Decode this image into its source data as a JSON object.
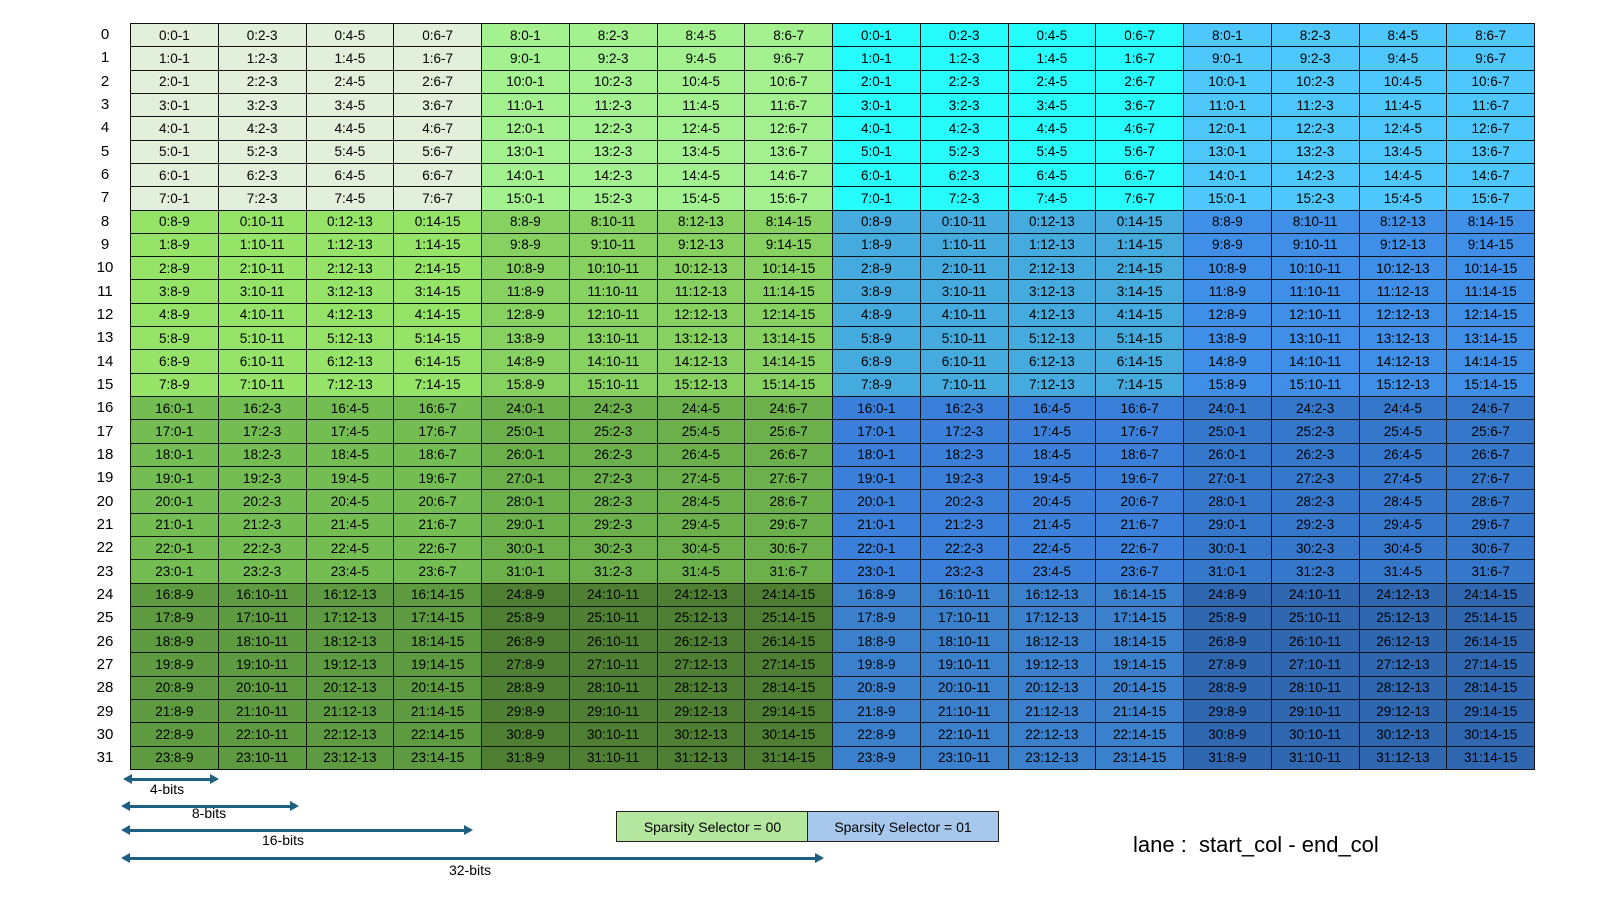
{
  "row_labels": [
    "0",
    "1",
    "2",
    "3",
    "4",
    "5",
    "6",
    "7",
    "8",
    "9",
    "10",
    "11",
    "12",
    "13",
    "14",
    "15",
    "16",
    "17",
    "18",
    "19",
    "20",
    "21",
    "22",
    "23",
    "24",
    "25",
    "26",
    "27",
    "28",
    "29",
    "30",
    "31"
  ],
  "grid": [
    [
      "0:0-1",
      "0:2-3",
      "0:4-5",
      "0:6-7",
      "8:0-1",
      "8:2-3",
      "8:4-5",
      "8:6-7",
      "0:0-1",
      "0:2-3",
      "0:4-5",
      "0:6-7",
      "8:0-1",
      "8:2-3",
      "8:4-5",
      "8:6-7"
    ],
    [
      "1:0-1",
      "1:2-3",
      "1:4-5",
      "1:6-7",
      "9:0-1",
      "9:2-3",
      "9:4-5",
      "9:6-7",
      "1:0-1",
      "1:2-3",
      "1:4-5",
      "1:6-7",
      "9:0-1",
      "9:2-3",
      "9:4-5",
      "9:6-7"
    ],
    [
      "2:0-1",
      "2:2-3",
      "2:4-5",
      "2:6-7",
      "10:0-1",
      "10:2-3",
      "10:4-5",
      "10:6-7",
      "2:0-1",
      "2:2-3",
      "2:4-5",
      "2:6-7",
      "10:0-1",
      "10:2-3",
      "10:4-5",
      "10:6-7"
    ],
    [
      "3:0-1",
      "3:2-3",
      "3:4-5",
      "3:6-7",
      "11:0-1",
      "11:2-3",
      "11:4-5",
      "11:6-7",
      "3:0-1",
      "3:2-3",
      "3:4-5",
      "3:6-7",
      "11:0-1",
      "11:2-3",
      "11:4-5",
      "11:6-7"
    ],
    [
      "4:0-1",
      "4:2-3",
      "4:4-5",
      "4:6-7",
      "12:0-1",
      "12:2-3",
      "12:4-5",
      "12:6-7",
      "4:0-1",
      "4:2-3",
      "4:4-5",
      "4:6-7",
      "12:0-1",
      "12:2-3",
      "12:4-5",
      "12:6-7"
    ],
    [
      "5:0-1",
      "5:2-3",
      "5:4-5",
      "5:6-7",
      "13:0-1",
      "13:2-3",
      "13:4-5",
      "13:6-7",
      "5:0-1",
      "5:2-3",
      "5:4-5",
      "5:6-7",
      "13:0-1",
      "13:2-3",
      "13:4-5",
      "13:6-7"
    ],
    [
      "6:0-1",
      "6:2-3",
      "6:4-5",
      "6:6-7",
      "14:0-1",
      "14:2-3",
      "14:4-5",
      "14:6-7",
      "6:0-1",
      "6:2-3",
      "6:4-5",
      "6:6-7",
      "14:0-1",
      "14:2-3",
      "14:4-5",
      "14:6-7"
    ],
    [
      "7:0-1",
      "7:2-3",
      "7:4-5",
      "7:6-7",
      "15:0-1",
      "15:2-3",
      "15:4-5",
      "15:6-7",
      "7:0-1",
      "7:2-3",
      "7:4-5",
      "7:6-7",
      "15:0-1",
      "15:2-3",
      "15:4-5",
      "15:6-7"
    ],
    [
      "0:8-9",
      "0:10-11",
      "0:12-13",
      "0:14-15",
      "8:8-9",
      "8:10-11",
      "8:12-13",
      "8:14-15",
      "0:8-9",
      "0:10-11",
      "0:12-13",
      "0:14-15",
      "8:8-9",
      "8:10-11",
      "8:12-13",
      "8:14-15"
    ],
    [
      "1:8-9",
      "1:10-11",
      "1:12-13",
      "1:14-15",
      "9:8-9",
      "9:10-11",
      "9:12-13",
      "9:14-15",
      "1:8-9",
      "1:10-11",
      "1:12-13",
      "1:14-15",
      "9:8-9",
      "9:10-11",
      "9:12-13",
      "9:14-15"
    ],
    [
      "2:8-9",
      "2:10-11",
      "2:12-13",
      "2:14-15",
      "10:8-9",
      "10:10-11",
      "10:12-13",
      "10:14-15",
      "2:8-9",
      "2:10-11",
      "2:12-13",
      "2:14-15",
      "10:8-9",
      "10:10-11",
      "10:12-13",
      "10:14-15"
    ],
    [
      "3:8-9",
      "3:10-11",
      "3:12-13",
      "3:14-15",
      "11:8-9",
      "11:10-11",
      "11:12-13",
      "11:14-15",
      "3:8-9",
      "3:10-11",
      "3:12-13",
      "3:14-15",
      "11:8-9",
      "11:10-11",
      "11:12-13",
      "11:14-15"
    ],
    [
      "4:8-9",
      "4:10-11",
      "4:12-13",
      "4:14-15",
      "12:8-9",
      "12:10-11",
      "12:12-13",
      "12:14-15",
      "4:8-9",
      "4:10-11",
      "4:12-13",
      "4:14-15",
      "12:8-9",
      "12:10-11",
      "12:12-13",
      "12:14-15"
    ],
    [
      "5:8-9",
      "5:10-11",
      "5:12-13",
      "5:14-15",
      "13:8-9",
      "13:10-11",
      "13:12-13",
      "13:14-15",
      "5:8-9",
      "5:10-11",
      "5:12-13",
      "5:14-15",
      "13:8-9",
      "13:10-11",
      "13:12-13",
      "13:14-15"
    ],
    [
      "6:8-9",
      "6:10-11",
      "6:12-13",
      "6:14-15",
      "14:8-9",
      "14:10-11",
      "14:12-13",
      "14:14-15",
      "6:8-9",
      "6:10-11",
      "6:12-13",
      "6:14-15",
      "14:8-9",
      "14:10-11",
      "14:12-13",
      "14:14-15"
    ],
    [
      "7:8-9",
      "7:10-11",
      "7:12-13",
      "7:14-15",
      "15:8-9",
      "15:10-11",
      "15:12-13",
      "15:14-15",
      "7:8-9",
      "7:10-11",
      "7:12-13",
      "7:14-15",
      "15:8-9",
      "15:10-11",
      "15:12-13",
      "15:14-15"
    ],
    [
      "16:0-1",
      "16:2-3",
      "16:4-5",
      "16:6-7",
      "24:0-1",
      "24:2-3",
      "24:4-5",
      "24:6-7",
      "16:0-1",
      "16:2-3",
      "16:4-5",
      "16:6-7",
      "24:0-1",
      "24:2-3",
      "24:4-5",
      "24:6-7"
    ],
    [
      "17:0-1",
      "17:2-3",
      "17:4-5",
      "17:6-7",
      "25:0-1",
      "25:2-3",
      "25:4-5",
      "25:6-7",
      "17:0-1",
      "17:2-3",
      "17:4-5",
      "17:6-7",
      "25:0-1",
      "25:2-3",
      "25:4-5",
      "25:6-7"
    ],
    [
      "18:0-1",
      "18:2-3",
      "18:4-5",
      "18:6-7",
      "26:0-1",
      "26:2-3",
      "26:4-5",
      "26:6-7",
      "18:0-1",
      "18:2-3",
      "18:4-5",
      "18:6-7",
      "26:0-1",
      "26:2-3",
      "26:4-5",
      "26:6-7"
    ],
    [
      "19:0-1",
      "19:2-3",
      "19:4-5",
      "19:6-7",
      "27:0-1",
      "27:2-3",
      "27:4-5",
      "27:6-7",
      "19:0-1",
      "19:2-3",
      "19:4-5",
      "19:6-7",
      "27:0-1",
      "27:2-3",
      "27:4-5",
      "27:6-7"
    ],
    [
      "20:0-1",
      "20:2-3",
      "20:4-5",
      "20:6-7",
      "28:0-1",
      "28:2-3",
      "28:4-5",
      "28:6-7",
      "20:0-1",
      "20:2-3",
      "20:4-5",
      "20:6-7",
      "28:0-1",
      "28:2-3",
      "28:4-5",
      "28:6-7"
    ],
    [
      "21:0-1",
      "21:2-3",
      "21:4-5",
      "21:6-7",
      "29:0-1",
      "29:2-3",
      "29:4-5",
      "29:6-7",
      "21:0-1",
      "21:2-3",
      "21:4-5",
      "21:6-7",
      "29:0-1",
      "29:2-3",
      "29:4-5",
      "29:6-7"
    ],
    [
      "22:0-1",
      "22:2-3",
      "22:4-5",
      "22:6-7",
      "30:0-1",
      "30:2-3",
      "30:4-5",
      "30:6-7",
      "22:0-1",
      "22:2-3",
      "22:4-5",
      "22:6-7",
      "30:0-1",
      "30:2-3",
      "30:4-5",
      "30:6-7"
    ],
    [
      "23:0-1",
      "23:2-3",
      "23:4-5",
      "23:6-7",
      "31:0-1",
      "31:2-3",
      "31:4-5",
      "31:6-7",
      "23:0-1",
      "23:2-3",
      "23:4-5",
      "23:6-7",
      "31:0-1",
      "31:2-3",
      "31:4-5",
      "31:6-7"
    ],
    [
      "16:8-9",
      "16:10-11",
      "16:12-13",
      "16:14-15",
      "24:8-9",
      "24:10-11",
      "24:12-13",
      "24:14-15",
      "16:8-9",
      "16:10-11",
      "16:12-13",
      "16:14-15",
      "24:8-9",
      "24:10-11",
      "24:12-13",
      "24:14-15"
    ],
    [
      "17:8-9",
      "17:10-11",
      "17:12-13",
      "17:14-15",
      "25:8-9",
      "25:10-11",
      "25:12-13",
      "25:14-15",
      "17:8-9",
      "17:10-11",
      "17:12-13",
      "17:14-15",
      "25:8-9",
      "25:10-11",
      "25:12-13",
      "25:14-15"
    ],
    [
      "18:8-9",
      "18:10-11",
      "18:12-13",
      "18:14-15",
      "26:8-9",
      "26:10-11",
      "26:12-13",
      "26:14-15",
      "18:8-9",
      "18:10-11",
      "18:12-13",
      "18:14-15",
      "26:8-9",
      "26:10-11",
      "26:12-13",
      "26:14-15"
    ],
    [
      "19:8-9",
      "19:10-11",
      "19:12-13",
      "19:14-15",
      "27:8-9",
      "27:10-11",
      "27:12-13",
      "27:14-15",
      "19:8-9",
      "19:10-11",
      "19:12-13",
      "19:14-15",
      "27:8-9",
      "27:10-11",
      "27:12-13",
      "27:14-15"
    ],
    [
      "20:8-9",
      "20:10-11",
      "20:12-13",
      "20:14-15",
      "28:8-9",
      "28:10-11",
      "28:12-13",
      "28:14-15",
      "20:8-9",
      "20:10-11",
      "20:12-13",
      "20:14-15",
      "28:8-9",
      "28:10-11",
      "28:12-13",
      "28:14-15"
    ],
    [
      "21:8-9",
      "21:10-11",
      "21:12-13",
      "21:14-15",
      "29:8-9",
      "29:10-11",
      "29:12-13",
      "29:14-15",
      "21:8-9",
      "21:10-11",
      "21:12-13",
      "21:14-15",
      "29:8-9",
      "29:10-11",
      "29:12-13",
      "29:14-15"
    ],
    [
      "22:8-9",
      "22:10-11",
      "22:12-13",
      "22:14-15",
      "30:8-9",
      "30:10-11",
      "30:12-13",
      "30:14-15",
      "22:8-9",
      "22:10-11",
      "22:12-13",
      "22:14-15",
      "30:8-9",
      "30:10-11",
      "30:12-13",
      "30:14-15"
    ],
    [
      "23:8-9",
      "23:10-11",
      "23:12-13",
      "23:14-15",
      "31:8-9",
      "31:10-11",
      "31:12-13",
      "31:14-15",
      "23:8-9",
      "23:10-11",
      "23:12-13",
      "23:14-15",
      "31:8-9",
      "31:10-11",
      "31:12-13",
      "31:14-15"
    ]
  ],
  "block_colors": {
    "green": [
      [
        "#e2efda",
        "#a3f28f"
      ],
      [
        "#95e468",
        "#86d160"
      ],
      [
        "#74bd52",
        "#6bb04b"
      ],
      [
        "#5e9b40",
        "#4e7f33"
      ]
    ],
    "blue": [
      [
        "#27fcfc",
        "#4ec8fc"
      ],
      [
        "#45aadd",
        "#3f8fe8"
      ],
      [
        "#3a80da",
        "#3477cb"
      ],
      [
        "#3a80cc",
        "#2f67b0"
      ]
    ]
  },
  "width_markers": [
    {
      "label": "4-bits"
    },
    {
      "label": "8-bits"
    },
    {
      "label": "16-bits"
    },
    {
      "label": "32-bits"
    }
  ],
  "legend": {
    "selector_00": {
      "label": "Sparsity Selector = 00",
      "color": "#b4e6a0"
    },
    "selector_01": {
      "label": "Sparsity Selector = 01",
      "color": "#a7c8ec"
    },
    "format_text": "lane :  start_col - end_col"
  },
  "arrow_color": "#1f5f80"
}
